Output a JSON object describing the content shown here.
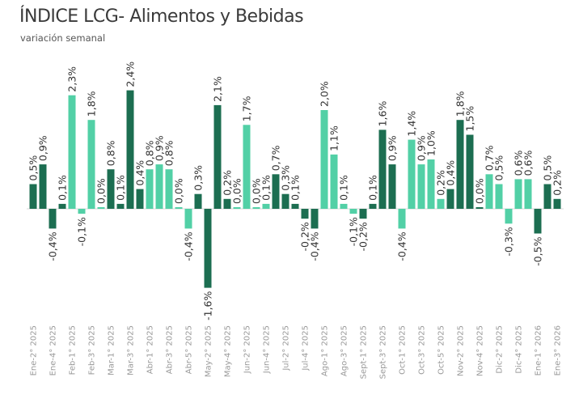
{
  "chart_data": {
    "type": "bar",
    "title": "ÍNDICE LCG- Alimentos y Bebidas",
    "subtitle": "variación semanal",
    "unit": "%",
    "colors": {
      "dark": "#1c6e51",
      "light": "#52d0a6"
    },
    "x_tick_labels": [
      "Ene-2° 2025",
      "Ene-4° 2025",
      "Feb-1° 2025",
      "Feb-3° 2025",
      "Mar-1° 2025",
      "Mar-3° 2025",
      "Abr-1° 2025",
      "Abr-3° 2025",
      "Abr-5° 2025",
      "May-2° 2025",
      "May-4° 2025",
      "Jun-2° 2025",
      "Jun-4° 2025",
      "Jul-2° 2025",
      "Jul-4° 2025",
      "Ago-1° 2025",
      "Ago-3° 2025",
      "Sept-1° 2025",
      "Sept-3° 2025",
      "Oct-1° 2025",
      "Oct-3° 2025",
      "Oct-5° 2025",
      "Nov-2° 2025",
      "Nov-4° 2025",
      "Dic-2° 2025",
      "Dic-4° 2025",
      "Ene-1° 2026",
      "Ene-3° 2026"
    ],
    "values": [
      0.5,
      0.9,
      -0.4,
      0.1,
      2.3,
      -0.1,
      1.8,
      0.0,
      0.8,
      0.1,
      2.4,
      0.4,
      0.8,
      0.9,
      0.8,
      0.0,
      -0.4,
      0.3,
      -1.6,
      2.1,
      0.2,
      0.0,
      1.7,
      0.0,
      0.1,
      0.7,
      0.3,
      0.1,
      -0.2,
      -0.4,
      2.0,
      1.1,
      0.1,
      -0.1,
      -0.2,
      0.1,
      1.6,
      0.9,
      -0.4,
      1.4,
      0.9,
      1.0,
      0.2,
      0.4,
      1.8,
      1.5,
      0.0,
      0.7,
      0.5,
      -0.3,
      0.6,
      0.6,
      -0.5,
      0.5,
      0.2
    ],
    "data_labels": [
      "0,5%",
      "0,9%",
      "-0,4%",
      "0,1%",
      "2,3%",
      "-0,1%",
      "1,8%",
      "0,0%",
      "0,8%",
      "0,1%",
      "2,4%",
      "0,4%",
      "0,8%",
      "0,9%",
      "0,8%",
      "0,0%",
      "-0,4%",
      "0,3%",
      "-1,6%",
      "2,1%",
      "0,2%",
      "0,0%",
      "1,7%",
      "0,0%",
      "0,1%",
      "0,7%",
      "0,3%",
      "0,1%",
      "-0,2%",
      "-0,4%",
      "2,0%",
      "1,1%",
      "0,1%",
      "-0,1%",
      "-0,2%",
      "0,1%",
      "1,6%",
      "0,9%",
      "-0,4%",
      "1,4%",
      "0,9%",
      "1,0%",
      "0,2%",
      "0,4%",
      "1,8%",
      "1,5%",
      "0,0%",
      "0,7%",
      "0,5%",
      "-0,3%",
      "0,6%",
      "0,6%",
      "-0,5%",
      "0,5%",
      "0,2%"
    ],
    "bar_colors": [
      "dark",
      "dark",
      "dark",
      "dark",
      "light",
      "light",
      "light",
      "light",
      "dark",
      "dark",
      "dark",
      "dark",
      "light",
      "light",
      "light",
      "light",
      "light",
      "dark",
      "dark",
      "dark",
      "dark",
      "light",
      "light",
      "light",
      "light",
      "dark",
      "dark",
      "dark",
      "dark",
      "dark",
      "light",
      "light",
      "light",
      "light",
      "dark",
      "dark",
      "dark",
      "dark",
      "light",
      "light",
      "light",
      "light",
      "light",
      "dark",
      "dark",
      "dark",
      "dark",
      "light",
      "light",
      "light",
      "light",
      "light",
      "dark",
      "dark",
      "dark"
    ],
    "ylim": [
      -1.6,
      2.4
    ],
    "grid": false,
    "legend": "none"
  }
}
